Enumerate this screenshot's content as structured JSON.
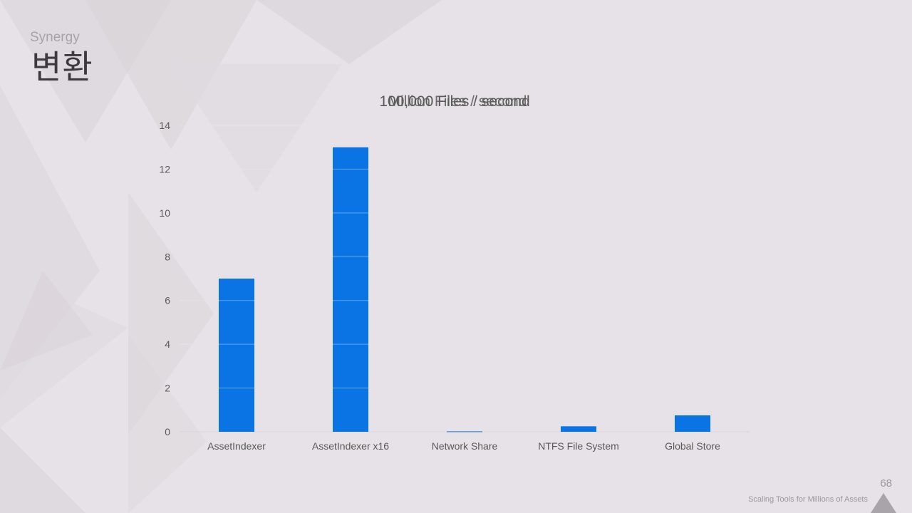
{
  "slide": {
    "subtitle": "Synergy",
    "title": "변환",
    "footer": "Scaling Tools for Millions of Assets",
    "page_number": "68"
  },
  "colors": {
    "background": "#e7e2e7",
    "bar": "#0a74e4",
    "grid": "#d9d4d9",
    "text": "#595959"
  },
  "chart_data": {
    "type": "bar",
    "title_overlapping": [
      "100,000 Files / second",
      "Million Files / second"
    ],
    "categories": [
      "AssetIndexer",
      "AssetIndexer x16",
      "Network Share",
      "NTFS File System",
      "Global Store"
    ],
    "values": [
      7.0,
      13.0,
      0.02,
      0.25,
      0.75
    ],
    "ylim": [
      0,
      14
    ],
    "yticks": [
      0,
      2,
      4,
      6,
      8,
      10,
      12,
      14
    ],
    "grid": true,
    "legend": "none"
  }
}
